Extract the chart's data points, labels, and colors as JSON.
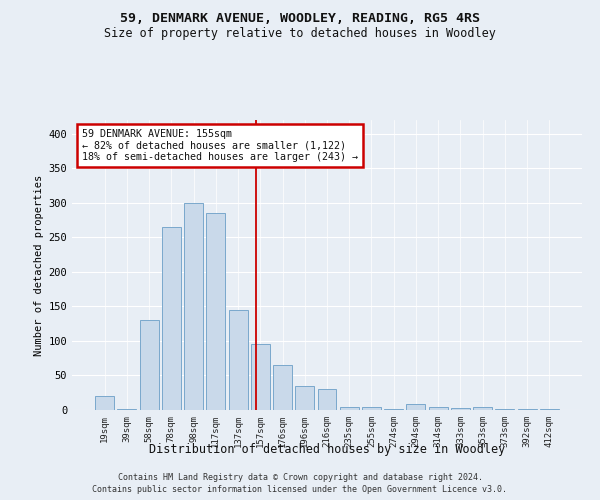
{
  "title": "59, DENMARK AVENUE, WOODLEY, READING, RG5 4RS",
  "subtitle": "Size of property relative to detached houses in Woodley",
  "xlabel": "Distribution of detached houses by size in Woodley",
  "ylabel": "Number of detached properties",
  "categories": [
    "19sqm",
    "39sqm",
    "58sqm",
    "78sqm",
    "98sqm",
    "117sqm",
    "137sqm",
    "157sqm",
    "176sqm",
    "196sqm",
    "216sqm",
    "235sqm",
    "255sqm",
    "274sqm",
    "294sqm",
    "314sqm",
    "333sqm",
    "353sqm",
    "373sqm",
    "392sqm",
    "412sqm"
  ],
  "values": [
    20,
    2,
    130,
    265,
    300,
    285,
    145,
    95,
    65,
    35,
    30,
    5,
    5,
    2,
    8,
    5,
    3,
    5,
    2,
    2,
    1
  ],
  "bar_color": "#c9d9ea",
  "bar_edge_color": "#7aa8cc",
  "marker_line_color": "#cc0000",
  "annotation_title": "59 DENMARK AVENUE: 155sqm",
  "annotation_line1": "← 82% of detached houses are smaller (1,122)",
  "annotation_line2": "18% of semi-detached houses are larger (243) →",
  "annotation_box_edge_color": "#cc0000",
  "ylim": [
    0,
    420
  ],
  "yticks": [
    0,
    50,
    100,
    150,
    200,
    250,
    300,
    350,
    400
  ],
  "footer_line1": "Contains HM Land Registry data © Crown copyright and database right 2024.",
  "footer_line2": "Contains public sector information licensed under the Open Government Licence v3.0.",
  "bg_color": "#e8eef5",
  "plot_bg_color": "#e8eef5"
}
